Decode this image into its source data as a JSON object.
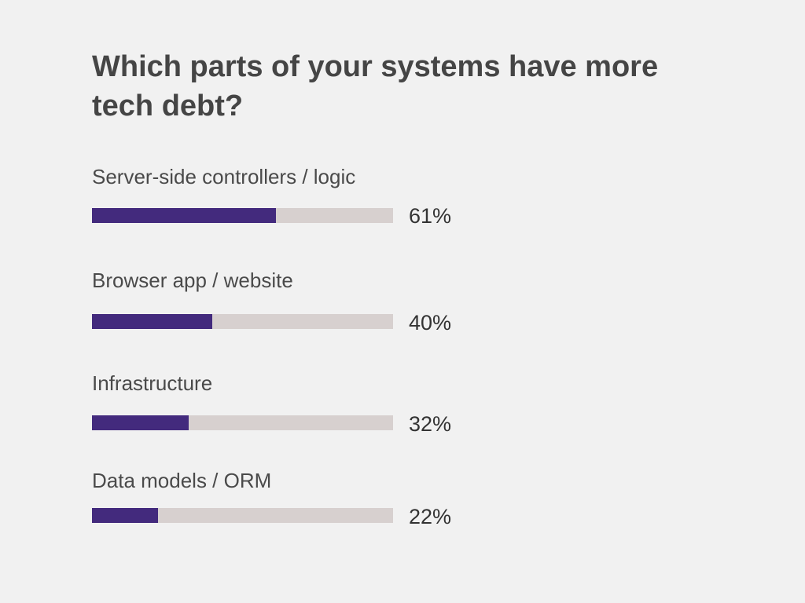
{
  "chart_data": {
    "type": "bar",
    "orientation": "horizontal",
    "title": "Which parts of your systems have more tech debt?",
    "categories": [
      "Server-side controllers / logic",
      "Browser app / website",
      "Infrastructure",
      "Data models / ORM"
    ],
    "values": [
      61,
      40,
      32,
      22
    ],
    "value_labels": [
      "61%",
      "40%",
      "32%",
      "22%"
    ],
    "xlim": [
      0,
      100
    ],
    "grid": false,
    "bar_color": "#432a7d",
    "track_color": "#d7d0cf"
  }
}
